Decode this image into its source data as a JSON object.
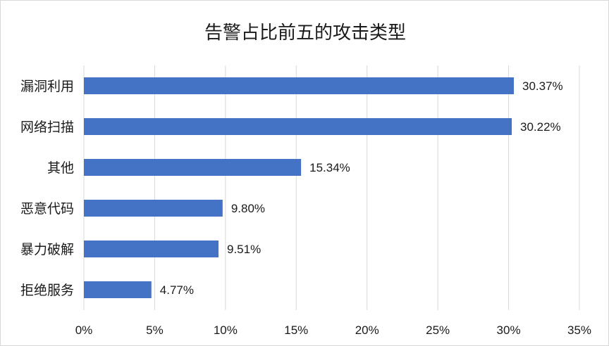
{
  "chart_data": {
    "type": "bar",
    "orientation": "horizontal",
    "title": "告警占比前五的攻击类型",
    "categories": [
      "漏洞利用",
      "网络扫描",
      "其他",
      "恶意代码",
      "暴力破解",
      "拒绝服务"
    ],
    "values": [
      30.37,
      30.22,
      15.34,
      9.8,
      9.51,
      4.77
    ],
    "value_labels": [
      "30.37%",
      "30.22%",
      "15.34%",
      "9.80%",
      "9.51%",
      "4.77%"
    ],
    "xlim": [
      0,
      35
    ],
    "x_ticks": [
      0,
      5,
      10,
      15,
      20,
      25,
      30,
      35
    ],
    "x_tick_labels": [
      "0%",
      "5%",
      "10%",
      "15%",
      "20%",
      "25%",
      "30%",
      "35%"
    ],
    "grid": "vertical",
    "bar_color": "#4472c4",
    "grid_color": "#d9d9d9"
  }
}
